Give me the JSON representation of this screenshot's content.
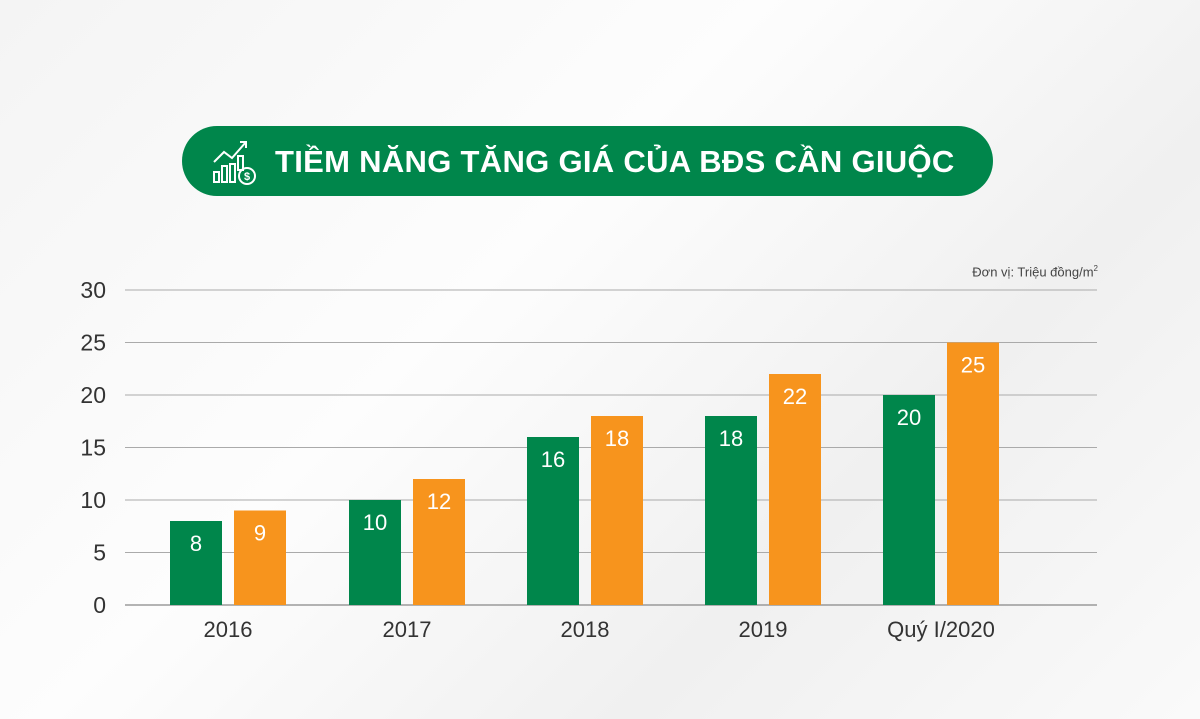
{
  "title": "TIỀM NĂNG TĂNG GIÁ CỦA BĐS CẦN GIUỘC",
  "title_icon": "growth-chart-dollar-icon",
  "unit_label": "Đơn vị: Triệu đồng/m",
  "unit_sup": "2",
  "colors": {
    "green": "#00864b",
    "orange": "#f7941d",
    "grid": "#999999"
  },
  "chart_data": {
    "type": "bar",
    "title": "TIỀM NĂNG TĂNG GIÁ CỦA BĐS CẦN GIUỘC",
    "categories": [
      "2016",
      "2017",
      "2018",
      "2019",
      "Quý I/2020"
    ],
    "series": [
      {
        "name": "series-green",
        "color": "#00864b",
        "values": [
          8,
          10,
          16,
          18,
          20
        ]
      },
      {
        "name": "series-orange",
        "color": "#f7941d",
        "values": [
          9,
          12,
          18,
          22,
          25
        ]
      }
    ],
    "yticks": [
      0,
      5,
      10,
      15,
      20,
      25,
      30
    ],
    "ylim": [
      0,
      30
    ],
    "xlabel": "",
    "ylabel": "Đơn vị: Triệu đồng/m2",
    "grid": true,
    "legend": "none"
  }
}
